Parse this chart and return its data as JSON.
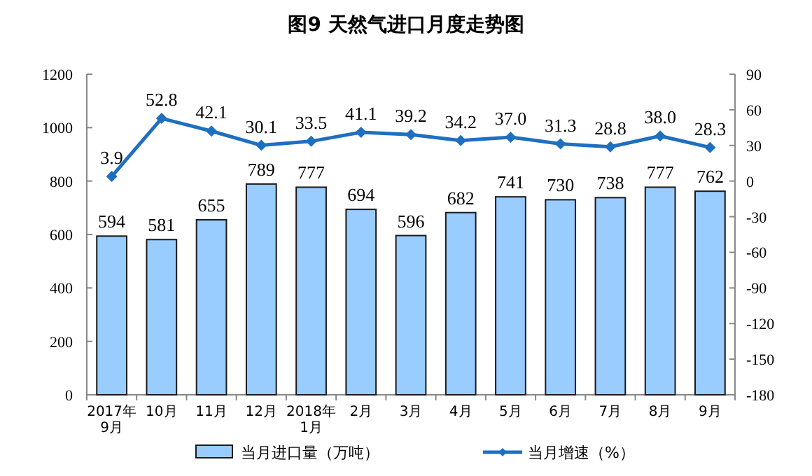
{
  "chart_data": {
    "type": "bar",
    "title": "图9  天然气进口月度走势图",
    "categories": [
      "2017年\n9月",
      "10月",
      "11月",
      "12月",
      "2018年\n1月",
      "2月",
      "3月",
      "4月",
      "5月",
      "6月",
      "7月",
      "8月",
      "9月"
    ],
    "series": [
      {
        "name": "当月进口量（万吨）",
        "color": "#99ccff",
        "values": [
          594,
          581,
          655,
          789,
          777,
          694,
          596,
          682,
          741,
          730,
          738,
          777,
          762
        ]
      },
      {
        "name": "当月增速（%）",
        "type": "line",
        "axis": "y2",
        "color": "#1f6fc0",
        "marker": "diamond",
        "values": [
          3.9,
          52.8,
          42.1,
          30.1,
          33.5,
          41.1,
          39.2,
          34.2,
          37.0,
          31.3,
          28.8,
          38.0,
          28.3
        ],
        "value_labels": [
          "3.9",
          "52.8",
          "42.1",
          "30.1",
          "33.5",
          "41.1",
          "39.2",
          "34.2",
          "37.0",
          "31.3",
          "28.8",
          "38.0",
          "28.3"
        ]
      }
    ],
    "data_labels": true,
    "ylim": [
      0,
      1200
    ],
    "yticks": [
      0,
      200,
      400,
      600,
      800,
      1000,
      1200
    ],
    "y2lim": [
      -180,
      90
    ],
    "y2ticks": [
      -180,
      -150,
      -120,
      -90,
      -60,
      -30,
      0,
      30,
      60,
      90
    ],
    "grid": false,
    "legend": "bottom"
  }
}
